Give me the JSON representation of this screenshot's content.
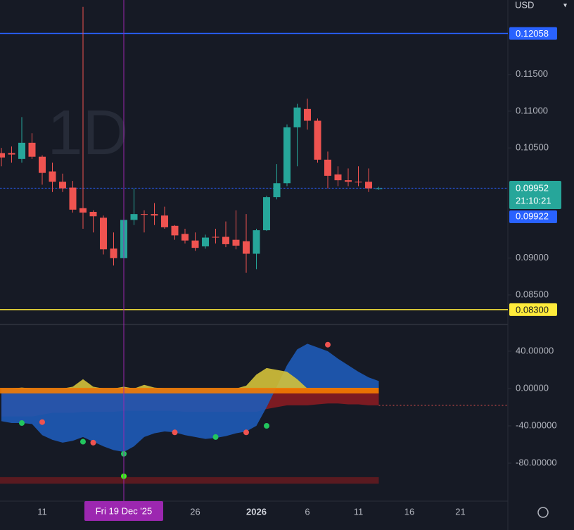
{
  "chart_data": {
    "type": "candlestick",
    "watermark": "1D",
    "currency": "USD",
    "ylim": [
      0.08107,
      0.12513
    ],
    "yticks": [
      {
        "value": 0.115,
        "label": "0.11500"
      },
      {
        "value": 0.11,
        "label": "0.11000"
      },
      {
        "value": 0.105,
        "label": "0.10500"
      },
      {
        "value": 0.09,
        "label": "0.09000"
      },
      {
        "value": 0.085,
        "label": "0.08500"
      }
    ],
    "xticks": [
      {
        "value": 4,
        "label": "11"
      },
      {
        "value": 19,
        "label": "26"
      },
      {
        "value": 25,
        "label": "2026"
      },
      {
        "value": 30,
        "label": "6"
      },
      {
        "value": 35,
        "label": "11"
      },
      {
        "value": 40,
        "label": "16"
      },
      {
        "value": 45,
        "label": "21"
      }
    ],
    "crosshair": {
      "value": 12,
      "label": "Fri 19 Dec '25"
    },
    "up_color": "#26a69a",
    "down_color": "#ef5350",
    "open": [
      0.1043,
      0.1043,
      0.1035,
      0.1057,
      0.1038,
      0.1018,
      0.1004,
      0.0996,
      0.0968,
      0.0963,
      0.0955,
      0.0913,
      0.09,
      0.0952,
      0.096,
      0.096,
      0.0958,
      0.0944,
      0.0933,
      0.0924,
      0.0916,
      0.0929,
      0.0929,
      0.0925,
      0.0923,
      0.0906,
      0.0938,
      0.0983,
      0.1002,
      0.1078,
      0.1103,
      0.1087,
      0.1034,
      0.1014,
      0.1006,
      0.1004,
      0.1004,
      0.0994
    ],
    "high": [
      0.105,
      0.1052,
      0.1092,
      0.107,
      0.104,
      0.103,
      0.1015,
      0.1005,
      0.1242,
      0.0965,
      0.0958,
      0.0935,
      0.0958,
      0.0995,
      0.0965,
      0.0975,
      0.097,
      0.0945,
      0.094,
      0.0935,
      0.0932,
      0.094,
      0.095,
      0.0965,
      0.096,
      0.094,
      0.0985,
      0.1028,
      0.1082,
      0.111,
      0.1117,
      0.109,
      0.1045,
      0.1025,
      0.1022,
      0.1025,
      0.1022,
      0.0997
    ],
    "low": [
      0.1025,
      0.103,
      0.103,
      0.1035,
      0.1,
      0.099,
      0.099,
      0.0962,
      0.094,
      0.0935,
      0.0905,
      0.089,
      0.0893,
      0.0945,
      0.0935,
      0.0945,
      0.094,
      0.0925,
      0.092,
      0.091,
      0.0913,
      0.092,
      0.0915,
      0.0912,
      0.088,
      0.0885,
      0.0937,
      0.098,
      0.0998,
      0.1025,
      0.1075,
      0.103,
      0.0995,
      0.0998,
      0.0998,
      0.0998,
      0.099,
      0.0993
    ],
    "close": [
      0.1037,
      0.1041,
      0.1057,
      0.1038,
      0.1016,
      0.1004,
      0.0995,
      0.0966,
      0.0962,
      0.0957,
      0.0912,
      0.09,
      0.0952,
      0.096,
      0.0959,
      0.0958,
      0.0942,
      0.0931,
      0.0924,
      0.0914,
      0.0928,
      0.0928,
      0.0919,
      0.0917,
      0.0906,
      0.0938,
      0.0983,
      0.1002,
      0.1078,
      0.1105,
      0.1087,
      0.1034,
      0.1012,
      0.1006,
      0.1004,
      0.1003,
      0.0995,
      0.0995
    ],
    "levels": [
      {
        "value": 0.12058,
        "label": "0.12058",
        "color": "#2962ff",
        "text_color": "#ffffff"
      },
      {
        "value": 0.083,
        "label": "0.08300",
        "color": "#ffeb3b",
        "text_color": "#131722"
      }
    ],
    "last_price": {
      "value": 0.09952,
      "label": "0.09952",
      "countdown": "21:10:21",
      "color": "#26a69a"
    },
    "bid_price": {
      "value": 0.09922,
      "label": "0.09922",
      "color": "#2962ff"
    },
    "indicator": {
      "ylim": [
        -119.2,
        69.4
      ],
      "yticks": [
        {
          "value": 40,
          "label": "40.00000"
        },
        {
          "value": 0,
          "label": "0.00000"
        },
        {
          "value": -40,
          "label": "-40.00000"
        },
        {
          "value": -80,
          "label": "-80.00000"
        }
      ],
      "series": [
        {
          "color": "#8e1c22",
          "values": [
            -30,
            -30,
            -30,
            -30,
            -28,
            -26,
            -26,
            -26,
            -25,
            -25,
            -25,
            -25,
            -24,
            -24,
            -24,
            -24,
            -24,
            -24,
            -25,
            -25,
            -25,
            -25,
            -25,
            -25,
            -25,
            -25,
            -22,
            -20,
            -18,
            -18,
            -18,
            -17,
            -16,
            -16,
            -17,
            -17,
            -18,
            -18
          ]
        },
        {
          "color": "#1e5bb8",
          "values": [
            -35,
            -37,
            -37,
            -38,
            -50,
            -55,
            -58,
            -56,
            -52,
            -57,
            -62,
            -66,
            -68,
            -62,
            -52,
            -48,
            -46,
            -47,
            -50,
            -52,
            -54,
            -53,
            -51,
            -48,
            -46,
            -40,
            -20,
            2,
            25,
            42,
            48,
            44,
            40,
            32,
            25,
            18,
            12,
            8
          ]
        },
        {
          "color": "#d4c23a",
          "values": [
            0,
            0,
            1,
            0,
            0,
            0,
            0,
            2,
            10,
            2,
            0,
            0,
            2,
            0,
            4,
            1,
            0,
            0,
            0,
            0,
            0,
            0,
            0,
            0,
            3,
            15,
            22,
            20,
            18,
            10,
            0,
            0,
            0,
            0,
            0,
            0,
            0,
            0
          ]
        }
      ],
      "zero_band_color": "#f57c00",
      "dotted_level": -18,
      "dots": [
        {
          "index": 2,
          "value": -37,
          "color": "#22c55e"
        },
        {
          "index": 4,
          "value": -36,
          "color": "#ef5350"
        },
        {
          "index": 8,
          "value": -57,
          "color": "#22c55e"
        },
        {
          "index": 9,
          "value": -58,
          "color": "#ef5350"
        },
        {
          "index": 12,
          "value": -70,
          "color": "#22c55e"
        },
        {
          "index": 17,
          "value": -47,
          "color": "#ef5350"
        },
        {
          "index": 21,
          "value": -52,
          "color": "#22c55e"
        },
        {
          "index": 24,
          "value": -47,
          "color": "#ef5350"
        },
        {
          "index": 26,
          "value": -40,
          "color": "#22c55e"
        },
        {
          "index": 32,
          "value": 47,
          "color": "#ef5350"
        },
        {
          "index": 12,
          "value": -94,
          "color": "#39ff14"
        }
      ],
      "band": [
        -95,
        -102
      ]
    }
  }
}
